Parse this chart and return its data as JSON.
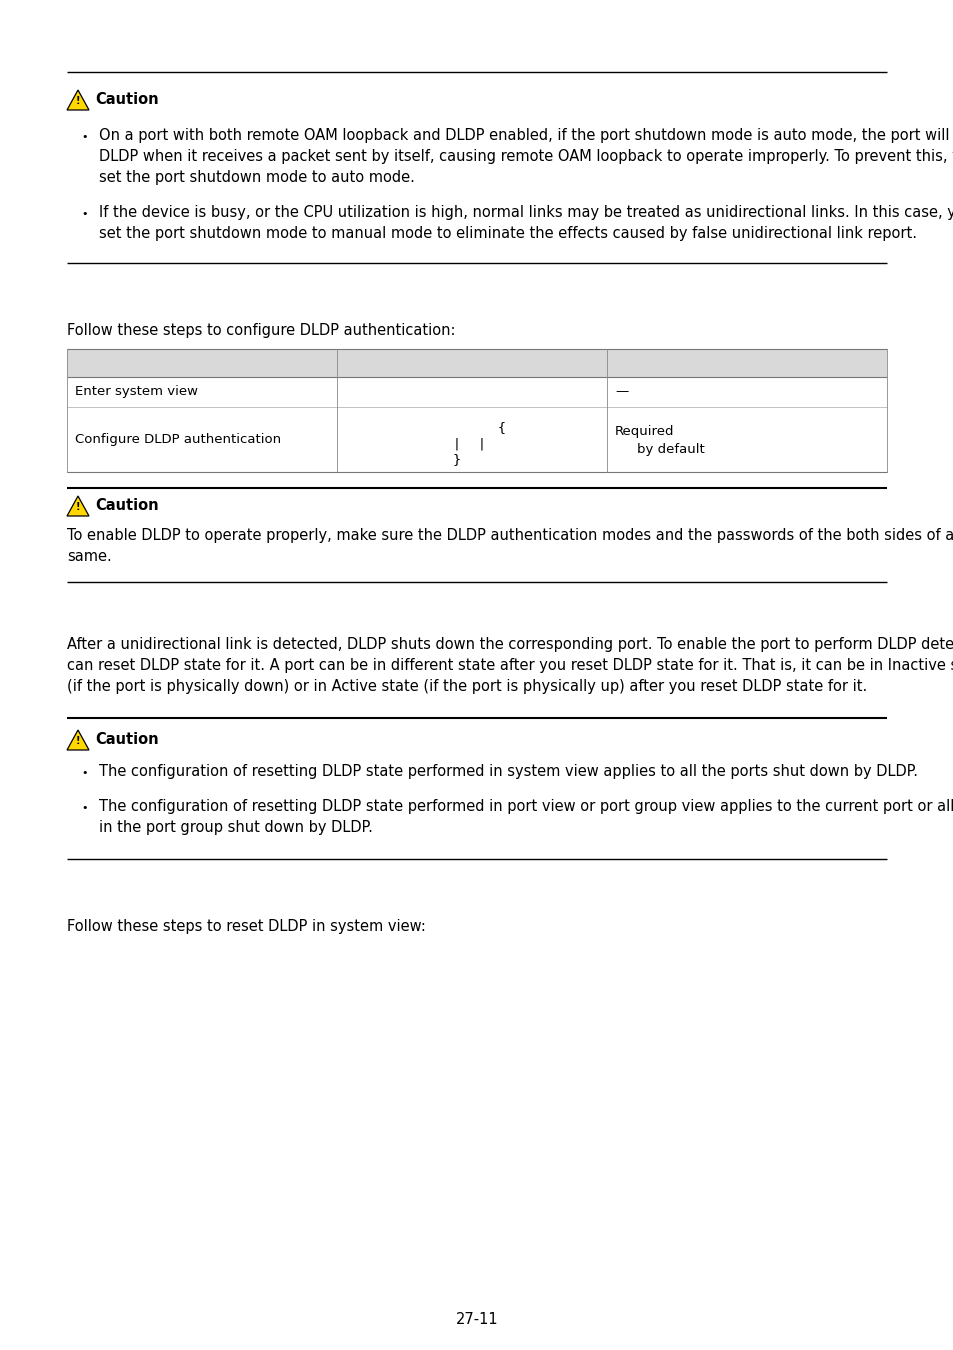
{
  "bg_color": "#ffffff",
  "text_color": "#000000",
  "table_header_bg": "#d9d9d9",
  "caution_yellow": "#FFD700",
  "items1": [
    "On a port with both remote OAM loopback and DLDP enabled, if the port shutdown mode is auto mode, the port will be shut down by DLDP when it receives a packet sent by itself, causing remote OAM loopback to operate improperly. To prevent this, you need to set the port shutdown mode to auto mode.",
    "If the device is busy, or the CPU utilization is high, normal links may be treated as unidirectional links. In this case, you can set the port shutdown mode to manual mode to eliminate the effects caused by false unidirectional link report."
  ],
  "follow_text_1": "Follow these steps to configure DLDP authentication:",
  "caution2_text": "To enable DLDP to operate properly, make sure the DLDP authentication modes and the passwords of the both sides of a link are the same.",
  "reset_paragraph": "After a unidirectional link is detected, DLDP shuts down the corresponding port. To enable the port to perform DLDP detect again, you can reset DLDP state for it. A port can be in different state after you reset DLDP state for it. That is, it can be in Inactive state (if the port is physically down) or in Active state (if the port is physically up) after you reset DLDP state for it.",
  "caution3_items": [
    "The configuration of resetting DLDP state performed in system view applies to all the ports shut down by DLDP.",
    "The configuration of resetting DLDP state performed in port view or port group view applies to the current port or all the ports in the port group shut down by DLDP."
  ],
  "follow_text_2": "Follow these steps to reset DLDP in system view:",
  "page_number": "27-11",
  "font_size_body": 10.5,
  "font_size_small": 9.5
}
